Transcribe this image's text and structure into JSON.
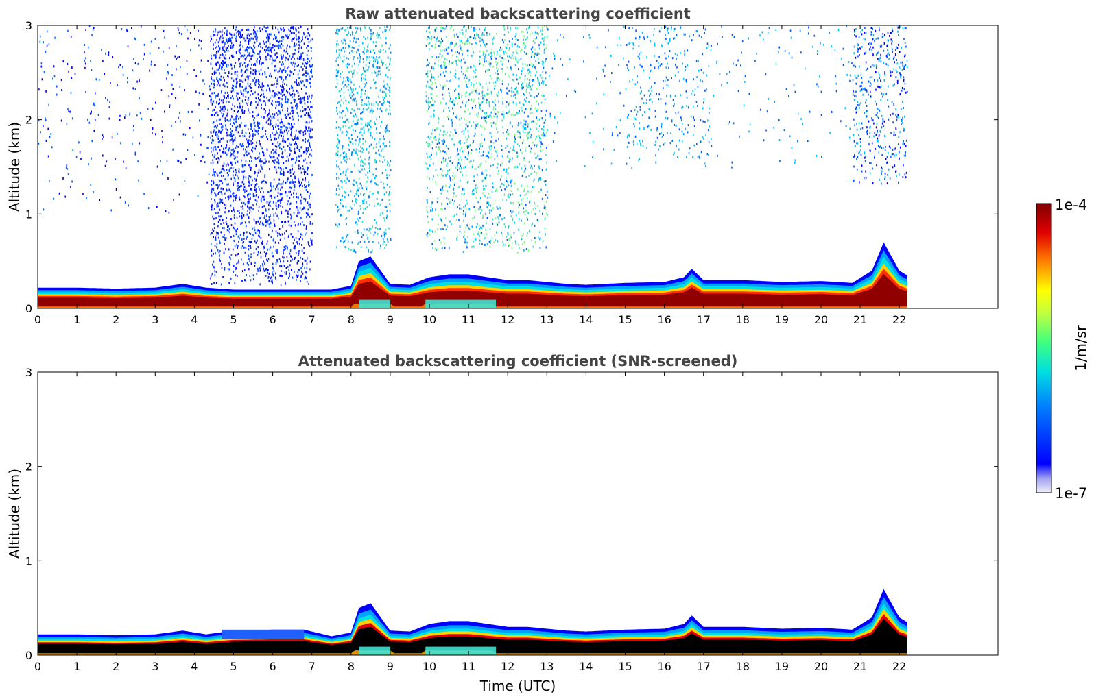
{
  "chart_data": [
    {
      "type": "heatmap",
      "title": "Raw attenuated backscattering coefficient",
      "xlabel": "",
      "ylabel": "Altitude (km)",
      "xlim": [
        0,
        24
      ],
      "ylim": [
        0,
        3
      ],
      "x_ticks": [
        0,
        1,
        2,
        3,
        4,
        5,
        6,
        7,
        8,
        9,
        10,
        11,
        12,
        13,
        14,
        15,
        16,
        17,
        18,
        19,
        20,
        21,
        22
      ],
      "y_ticks": [
        0,
        1,
        2,
        3
      ],
      "data_end_time": 22.2,
      "boundary_layer": {
        "x": [
          0,
          1,
          2,
          3,
          3.7,
          4.3,
          5,
          6,
          6.8,
          7.5,
          8,
          8.2,
          8.5,
          9,
          9.5,
          10,
          10.5,
          11,
          11.5,
          12,
          12.5,
          13,
          13.5,
          14,
          15,
          16,
          16.5,
          16.7,
          17,
          18,
          19,
          20,
          20.8,
          21.3,
          21.6,
          22,
          22.2
        ],
        "top_km": [
          0.22,
          0.22,
          0.21,
          0.22,
          0.26,
          0.22,
          0.2,
          0.2,
          0.2,
          0.2,
          0.24,
          0.5,
          0.55,
          0.26,
          0.25,
          0.33,
          0.36,
          0.36,
          0.33,
          0.3,
          0.3,
          0.28,
          0.26,
          0.25,
          0.27,
          0.28,
          0.33,
          0.42,
          0.3,
          0.3,
          0.28,
          0.29,
          0.27,
          0.4,
          0.7,
          0.4,
          0.35
        ]
      },
      "colorbar": {
        "label": "1/m/sr",
        "min_label": "1e-7",
        "max_label": "1e-4",
        "scale": "log"
      }
    },
    {
      "type": "heatmap",
      "title": "Attenuated backscattering coefficient (SNR-screened)",
      "xlabel": "Time (UTC)",
      "ylabel": "Altitude (km)",
      "xlim": [
        0,
        24
      ],
      "ylim": [
        0,
        3
      ],
      "x_ticks": [
        0,
        1,
        2,
        3,
        4,
        5,
        6,
        7,
        8,
        9,
        10,
        11,
        12,
        13,
        14,
        15,
        16,
        17,
        18,
        19,
        20,
        21,
        22
      ],
      "y_ticks": [
        0,
        1,
        2,
        3
      ],
      "data_end_time": 22.2,
      "boundary_layer": {
        "x": [
          0,
          1,
          2,
          3,
          3.7,
          4.3,
          5,
          6,
          6.8,
          7.5,
          8,
          8.2,
          8.5,
          9,
          9.5,
          10,
          10.5,
          11,
          11.5,
          12,
          12.5,
          13,
          13.5,
          14,
          15,
          16,
          16.5,
          16.7,
          17,
          18,
          19,
          20,
          20.8,
          21.3,
          21.6,
          22,
          22.2
        ],
        "top_km": [
          0.22,
          0.22,
          0.21,
          0.22,
          0.26,
          0.22,
          0.26,
          0.27,
          0.27,
          0.2,
          0.24,
          0.5,
          0.55,
          0.26,
          0.25,
          0.33,
          0.36,
          0.36,
          0.33,
          0.3,
          0.3,
          0.28,
          0.26,
          0.25,
          0.27,
          0.28,
          0.33,
          0.42,
          0.3,
          0.3,
          0.28,
          0.29,
          0.27,
          0.4,
          0.7,
          0.4,
          0.35
        ]
      }
    }
  ],
  "colorbar": {
    "label": "1/m/sr",
    "max_label": "1e-4",
    "min_label": "1e-7",
    "colors": [
      "#e8e8f8",
      "#b8b8f0",
      "#8080ff",
      "#0000ff",
      "#0060ff",
      "#00b0ff",
      "#00e0e0",
      "#40ff80",
      "#c0ff40",
      "#ffff00",
      "#ffb000",
      "#ff5000",
      "#e00000",
      "#800000"
    ]
  }
}
